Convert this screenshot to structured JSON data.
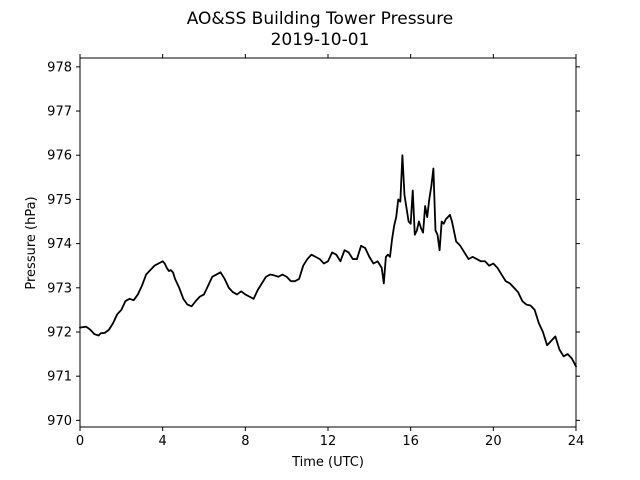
{
  "chart_data": {
    "type": "line",
    "title": "AO&SS Building Tower Pressure",
    "subtitle": "2019-10-01",
    "xlabel": "Time (UTC)",
    "ylabel": "Pressure (hPa)",
    "xlim": [
      0,
      24
    ],
    "ylim": [
      969.85,
      978.2
    ],
    "x_ticks": [
      0,
      4,
      8,
      12,
      16,
      20,
      24
    ],
    "y_ticks": [
      970,
      971,
      972,
      973,
      974,
      975,
      976,
      977,
      978
    ],
    "x_tick_labels": [
      "0",
      "4",
      "8",
      "12",
      "16",
      "20",
      "24"
    ],
    "y_tick_labels": [
      "970",
      "971",
      "972",
      "973",
      "974",
      "975",
      "976",
      "977",
      "978"
    ],
    "grid": false,
    "line_color": "#000000",
    "series": [
      {
        "x": [
          0,
          0.3,
          0.5,
          0.7,
          0.9,
          1.0,
          1.2,
          1.4,
          1.6,
          1.8,
          2.0,
          2.2,
          2.4,
          2.6,
          2.8,
          3.0,
          3.2,
          3.4,
          3.6,
          3.8,
          4.0,
          4.1,
          4.2,
          4.3,
          4.4,
          4.5,
          4.6,
          4.8,
          5.0,
          5.2,
          5.4,
          5.6,
          5.8,
          6.0,
          6.2,
          6.4,
          6.6,
          6.8,
          7.0,
          7.2,
          7.4,
          7.6,
          7.8,
          8.0,
          8.2,
          8.4,
          8.6,
          8.8,
          9.0,
          9.2,
          9.4,
          9.6,
          9.8,
          10.0,
          10.2,
          10.4,
          10.6,
          10.8,
          11.0,
          11.2,
          11.4,
          11.6,
          11.8,
          12.0,
          12.2,
          12.4,
          12.6,
          12.8,
          13.0,
          13.2,
          13.4,
          13.6,
          13.8,
          14.0,
          14.2,
          14.4,
          14.6,
          14.7,
          14.8,
          14.9,
          15.0,
          15.1,
          15.2,
          15.3,
          15.4,
          15.5,
          15.6,
          15.7,
          15.8,
          15.9,
          16.0,
          16.1,
          16.2,
          16.3,
          16.4,
          16.5,
          16.6,
          16.7,
          16.8,
          16.9,
          17.0,
          17.1,
          17.2,
          17.3,
          17.4,
          17.5,
          17.6,
          17.7,
          17.8,
          17.9,
          18.0,
          18.2,
          18.4,
          18.6,
          18.8,
          19.0,
          19.2,
          19.4,
          19.6,
          19.8,
          20.0,
          20.2,
          20.4,
          20.6,
          20.8,
          21.0,
          21.2,
          21.4,
          21.6,
          21.8,
          22.0,
          22.2,
          22.4,
          22.6,
          22.8,
          23.0,
          23.2,
          23.4,
          23.6,
          23.8,
          24.0
        ],
        "values": [
          972.1,
          972.12,
          972.05,
          971.95,
          971.92,
          971.97,
          971.98,
          972.05,
          972.2,
          972.4,
          972.5,
          972.7,
          972.75,
          972.72,
          972.85,
          973.05,
          973.3,
          973.4,
          973.5,
          973.55,
          973.6,
          973.55,
          973.45,
          973.38,
          973.4,
          973.35,
          973.2,
          973.0,
          972.75,
          972.62,
          972.58,
          972.7,
          972.8,
          972.85,
          973.05,
          973.25,
          973.3,
          973.35,
          973.2,
          973.0,
          972.9,
          972.85,
          972.92,
          972.85,
          972.8,
          972.75,
          972.95,
          973.1,
          973.25,
          973.3,
          973.28,
          973.25,
          973.3,
          973.25,
          973.15,
          973.15,
          973.2,
          973.5,
          973.65,
          973.75,
          973.7,
          973.65,
          973.55,
          973.6,
          973.8,
          973.75,
          973.6,
          973.85,
          973.8,
          973.65,
          973.65,
          973.95,
          973.9,
          973.7,
          973.55,
          973.6,
          973.45,
          973.1,
          973.7,
          973.75,
          973.7,
          974.1,
          974.4,
          974.6,
          975.0,
          974.95,
          976.0,
          975.1,
          974.8,
          974.5,
          974.45,
          975.2,
          974.2,
          974.3,
          974.5,
          974.35,
          974.25,
          974.85,
          974.6,
          975.0,
          975.3,
          975.7,
          974.3,
          974.2,
          973.85,
          974.5,
          974.45,
          974.55,
          974.6,
          974.65,
          974.5,
          974.05,
          973.95,
          973.8,
          973.65,
          973.7,
          973.65,
          973.6,
          973.6,
          973.5,
          973.55,
          973.45,
          973.3,
          973.15,
          973.1,
          973.0,
          972.9,
          972.7,
          972.62,
          972.6,
          972.5,
          972.2,
          972.0,
          971.7,
          971.8,
          971.9,
          971.6,
          971.45,
          971.5,
          971.4,
          971.22
        ]
      }
    ]
  }
}
